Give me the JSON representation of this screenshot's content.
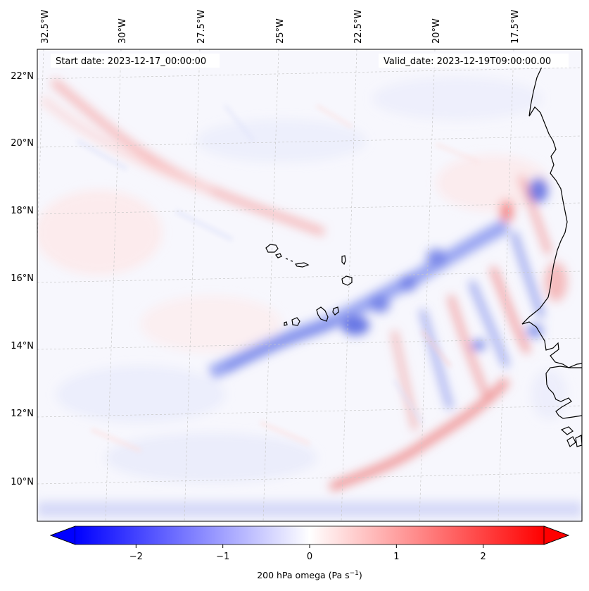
{
  "map": {
    "start_label": "Start date: 2023-12-17_00:00:00",
    "valid_label": "Valid_date: 2023-12-19T09:00:00.00",
    "lon_labels": [
      "32.5°W",
      "30°W",
      "27.5°W",
      "25°W",
      "22.5°W",
      "20°W",
      "17.5°W"
    ],
    "lat_labels": [
      "22°N",
      "20°N",
      "18°N",
      "16°N",
      "14°N",
      "12°N",
      "10°N"
    ]
  },
  "colorbar": {
    "tick_labels": [
      "−2",
      "−1",
      "0",
      "1",
      "2"
    ],
    "label_text": "200 hPa omega (Pa s",
    "label_exp": "−1",
    "label_close": ")",
    "min": -2.7,
    "max": 2.7
  },
  "colors": {
    "negative": "#0000ff",
    "positive": "#ff0000",
    "neutral": "#ffffff",
    "coast": "#000000",
    "grid": "#c8c8c8"
  }
}
